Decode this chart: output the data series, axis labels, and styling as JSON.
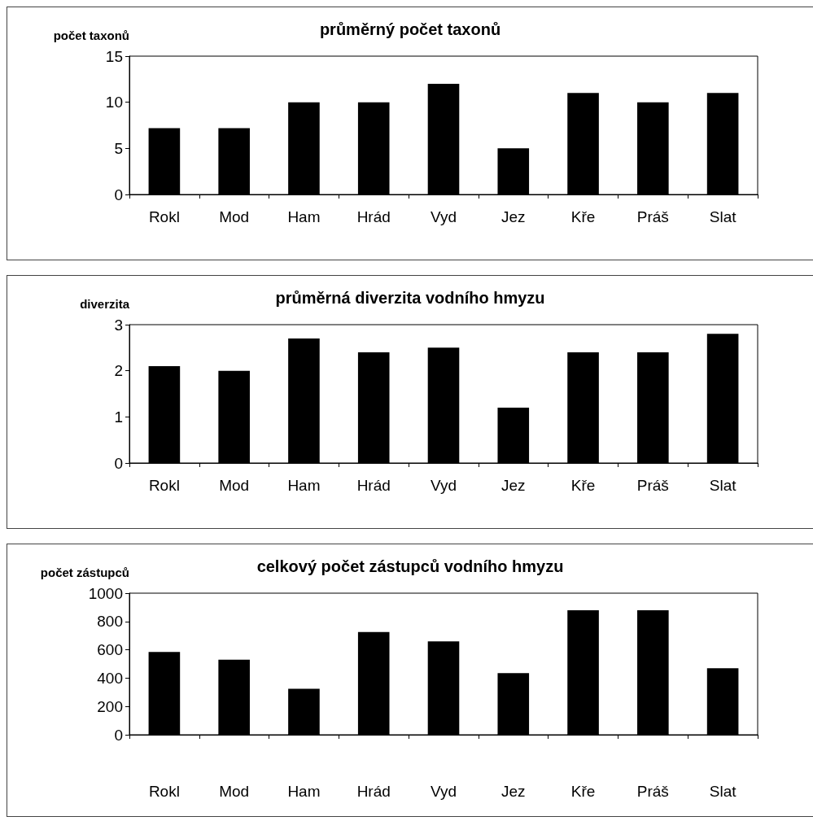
{
  "chart_data": [
    {
      "type": "bar",
      "title": "průměrný počet taxonů",
      "ylabel": "počet taxonů",
      "categories": [
        "Rokl",
        "Mod",
        "Ham",
        "Hrád",
        "Vyd",
        "Jez",
        "Kře",
        "Práš",
        "Slat"
      ],
      "values": [
        7.2,
        7.2,
        10,
        10,
        12,
        5,
        11,
        10,
        11
      ],
      "color": "#000000",
      "ylim": [
        0,
        15
      ],
      "yticks": [
        0,
        5,
        10,
        15
      ],
      "grid": false
    },
    {
      "type": "bar",
      "title": "průměrná diverzita vodního hmyzu",
      "ylabel": "diverzita",
      "categories": [
        "Rokl",
        "Mod",
        "Ham",
        "Hrád",
        "Vyd",
        "Jez",
        "Kře",
        "Práš",
        "Slat"
      ],
      "values": [
        2.1,
        2.0,
        2.7,
        2.4,
        2.5,
        1.2,
        2.4,
        2.4,
        2.8
      ],
      "color": "#000000",
      "ylim": [
        0,
        3
      ],
      "yticks": [
        0,
        1,
        2,
        3
      ],
      "grid": false
    },
    {
      "type": "bar",
      "title": "celkový počet zástupců vodního hmyzu",
      "ylabel": "počet zástupců",
      "categories": [
        "Rokl",
        "Mod",
        "Ham",
        "Hrád",
        "Vyd",
        "Jez",
        "Kře",
        "Práš",
        "Slat"
      ],
      "values": [
        585,
        530,
        325,
        725,
        660,
        435,
        880,
        880,
        470
      ],
      "color": "#000000",
      "ylim": [
        0,
        1000
      ],
      "yticks": [
        0,
        200,
        400,
        600,
        800,
        1000
      ],
      "grid": false
    }
  ]
}
